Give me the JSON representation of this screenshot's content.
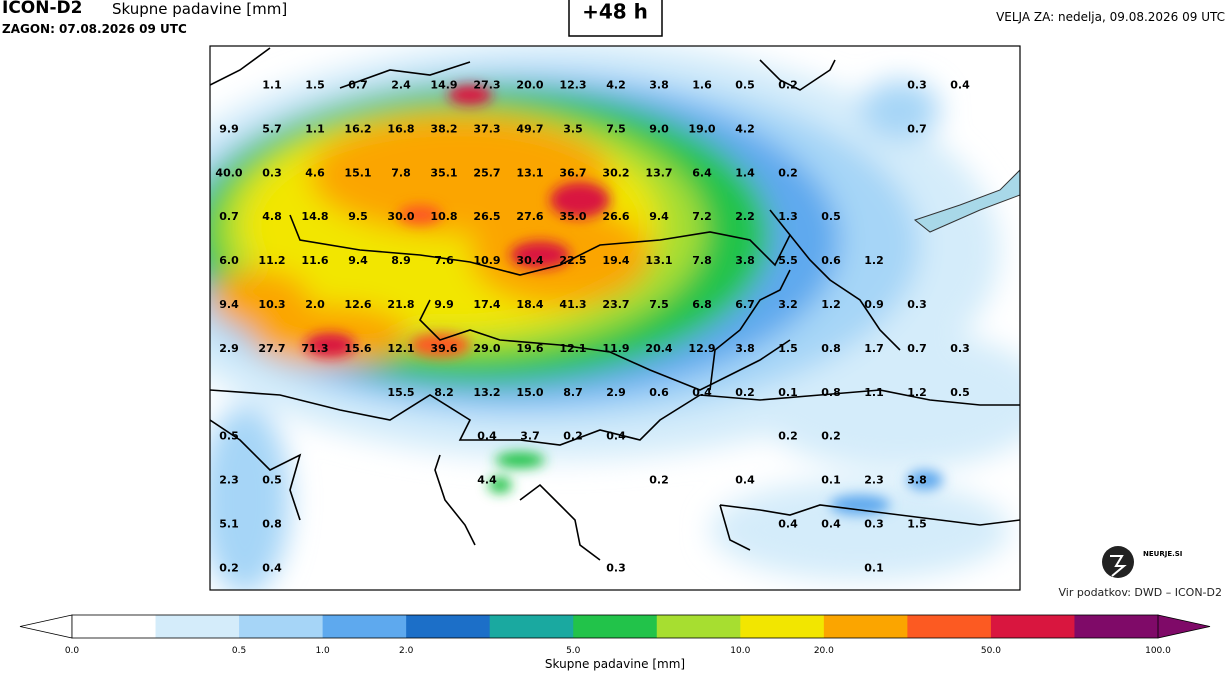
{
  "header": {
    "model": "ICON-D2",
    "title": "Skupne padavine [mm]",
    "run": "ZAGON: 07.08.2026 09 UTC",
    "lead": "+48 h",
    "valid": "VELJA ZA: nedelja, 09.08.2026 09 UTC"
  },
  "grid": [
    [
      null,
      "1.1",
      "1.5",
      "0.7",
      "2.4",
      "14.9",
      "27.3",
      "20.0",
      "12.3",
      "4.2",
      "3.8",
      "1.6",
      "0.5",
      "0.2",
      null,
      null,
      "0.3",
      "0.4"
    ],
    [
      "9.9",
      "5.7",
      "1.1",
      "16.2",
      "16.8",
      "38.2",
      "37.3",
      "49.7",
      "3.5",
      "7.5",
      "9.0",
      "19.0",
      "4.2",
      null,
      null,
      null,
      "0.7",
      null
    ],
    [
      "40.0",
      "0.3",
      "4.6",
      "15.1",
      "7.8",
      "35.1",
      "25.7",
      "13.1",
      "36.7",
      "30.2",
      "13.7",
      "6.4",
      "1.4",
      "0.2",
      null,
      null,
      null,
      null
    ],
    [
      "0.7",
      "4.8",
      "14.8",
      "9.5",
      "30.0",
      "10.8",
      "26.5",
      "27.6",
      "35.0",
      "26.6",
      "9.4",
      "7.2",
      "2.2",
      "1.3",
      "0.5",
      null,
      null,
      null
    ],
    [
      "6.0",
      "11.2",
      "11.6",
      "9.4",
      "8.9",
      "7.6",
      "10.9",
      "30.4",
      "22.5",
      "19.4",
      "13.1",
      "7.8",
      "3.8",
      "5.5",
      "0.6",
      "1.2",
      null,
      null
    ],
    [
      "9.4",
      "10.3",
      "2.0",
      "12.6",
      "21.8",
      "9.9",
      "17.4",
      "18.4",
      "41.3",
      "23.7",
      "7.5",
      "6.8",
      "6.7",
      "3.2",
      "1.2",
      "0.9",
      "0.3",
      null
    ],
    [
      "2.9",
      "27.7",
      "71.3",
      "15.6",
      "12.1",
      "39.6",
      "29.0",
      "19.6",
      "12.1",
      "11.9",
      "20.4",
      "12.9",
      "3.8",
      "1.5",
      "0.8",
      "1.7",
      "0.7",
      "0.3"
    ],
    [
      null,
      null,
      null,
      null,
      "15.5",
      "8.2",
      "13.2",
      "15.0",
      "8.7",
      "2.9",
      "0.6",
      "0.4",
      "0.2",
      "0.1",
      "0.8",
      "1.1",
      "1.2",
      "0.5"
    ],
    [
      "0.5",
      null,
      null,
      null,
      null,
      null,
      "0.4",
      "3.7",
      "0.2",
      "0.4",
      null,
      null,
      null,
      "0.2",
      "0.2",
      null,
      null,
      null
    ],
    [
      "2.3",
      "0.5",
      null,
      null,
      null,
      null,
      "4.4",
      null,
      null,
      null,
      "0.2",
      null,
      "0.4",
      null,
      "0.1",
      "2.3",
      "3.8",
      null
    ],
    [
      "5.1",
      "0.8",
      null,
      null,
      null,
      null,
      null,
      null,
      null,
      null,
      null,
      null,
      null,
      "0.4",
      "0.4",
      "0.3",
      "1.5",
      null
    ],
    [
      "0.2",
      "0.4",
      null,
      null,
      null,
      null,
      null,
      null,
      null,
      "0.3",
      null,
      null,
      null,
      null,
      null,
      "0.1",
      null,
      null
    ]
  ],
  "logo": "NEURJE.SI",
  "source": "Vir podatkov: DWD – ICON-D2",
  "colorbar": {
    "label": "Skupne padavine [mm]",
    "colors": [
      "#ffffff",
      "#d4ecfa",
      "#a6d5f7",
      "#5ea9ee",
      "#1c6fc8",
      "#1aa9a0",
      "#22c34a",
      "#a7de30",
      "#f2e600",
      "#fba500",
      "#fc5a22",
      "#d9163f",
      "#7f0a68"
    ],
    "labels": [
      "0.0",
      null,
      "0.5",
      "1.0",
      "2.0",
      null,
      "5.0",
      null,
      "10.0",
      "20.0",
      null,
      "50.0",
      null,
      "100.0"
    ]
  }
}
